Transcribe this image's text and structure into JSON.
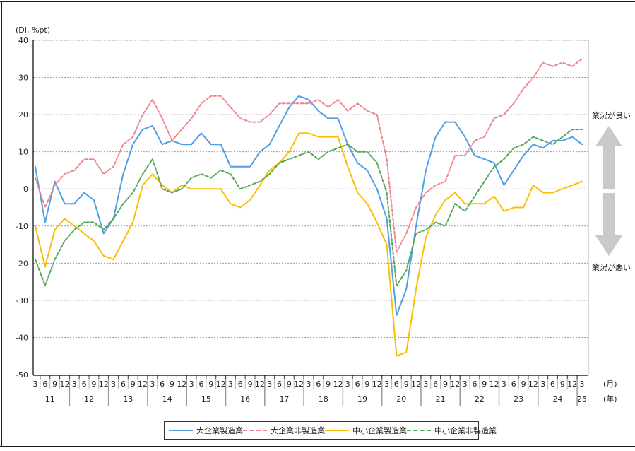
{
  "chart_data": {
    "type": "line",
    "unit_label": "(DI, %pt)",
    "ylim": [
      -50,
      40
    ],
    "ytick_step": 10,
    "grid": true,
    "legend_position": "bottom",
    "x_axis": {
      "quarter_labels": [
        "3",
        "6",
        "9",
        "12"
      ],
      "years": [
        "11",
        "12",
        "13",
        "14",
        "15",
        "16",
        "17",
        "18",
        "19",
        "20",
        "21",
        "22",
        "23",
        "24",
        "25"
      ],
      "month_label": "(月)",
      "year_label": "(年)"
    },
    "annotations": {
      "good": "業況が良い",
      "bad": "業況が悪い",
      "arrow_color": "#c9c9c9"
    },
    "series": [
      {
        "name": "大企業製造業",
        "color": "#4f9fe8",
        "style": "solid",
        "values": [
          6,
          -9,
          2,
          -4,
          -4,
          -1,
          -3,
          -12,
          -8,
          4,
          12,
          16,
          17,
          12,
          13,
          12,
          12,
          15,
          12,
          12,
          6,
          6,
          6,
          10,
          12,
          17,
          22,
          25,
          24,
          21,
          19,
          19,
          12,
          7,
          5,
          0,
          -8,
          -34,
          -27,
          -10,
          5,
          14,
          18,
          18,
          14,
          9,
          8,
          7,
          1,
          5,
          9,
          12,
          11,
          13,
          13,
          14,
          12
        ]
      },
      {
        "name": "大企業非製造業",
        "color": "#f0838c",
        "style": "dashed",
        "values": [
          3,
          -5,
          1,
          4,
          5,
          8,
          8,
          4,
          6,
          12,
          14,
          20,
          24,
          19,
          13,
          16,
          19,
          23,
          25,
          25,
          22,
          19,
          18,
          18,
          20,
          23,
          23,
          23,
          23,
          24,
          22,
          24,
          21,
          23,
          21,
          20,
          8,
          -17,
          -12,
          -5,
          -1,
          1,
          2,
          9,
          9,
          13,
          14,
          19,
          20,
          23,
          27,
          30,
          34,
          33,
          34,
          33,
          35
        ]
      },
      {
        "name": "中小企業製造業",
        "color": "#fbbe00",
        "style": "solid",
        "values": [
          -10,
          -21,
          -11,
          -8,
          -10,
          -12,
          -14,
          -18,
          -19,
          -14,
          -9,
          1,
          4,
          1,
          -1,
          1,
          0,
          0,
          0,
          0,
          -4,
          -5,
          -3,
          1,
          5,
          7,
          10,
          15,
          15,
          14,
          14,
          14,
          6,
          -1,
          -4,
          -9,
          -15,
          -45,
          -44,
          -27,
          -13,
          -7,
          -3,
          -1,
          -4,
          -4,
          -4,
          -2,
          -6,
          -5,
          -5,
          1,
          -1,
          -1,
          0,
          1,
          2
        ]
      },
      {
        "name": "中小企業非製造業",
        "color": "#57a657",
        "style": "dashed",
        "values": [
          -19,
          -26,
          -19,
          -14,
          -11,
          -9,
          -9,
          -11,
          -8,
          -4,
          -1,
          4,
          8,
          0,
          -1,
          0,
          3,
          4,
          3,
          5,
          4,
          0,
          1,
          2,
          4,
          7,
          8,
          9,
          10,
          8,
          10,
          11,
          12,
          10,
          10,
          7,
          -1,
          -26,
          -22,
          -12,
          -11,
          -9,
          -10,
          -4,
          -6,
          -2,
          2,
          6,
          8,
          11,
          12,
          14,
          13,
          12,
          14,
          16,
          16
        ]
      }
    ]
  }
}
